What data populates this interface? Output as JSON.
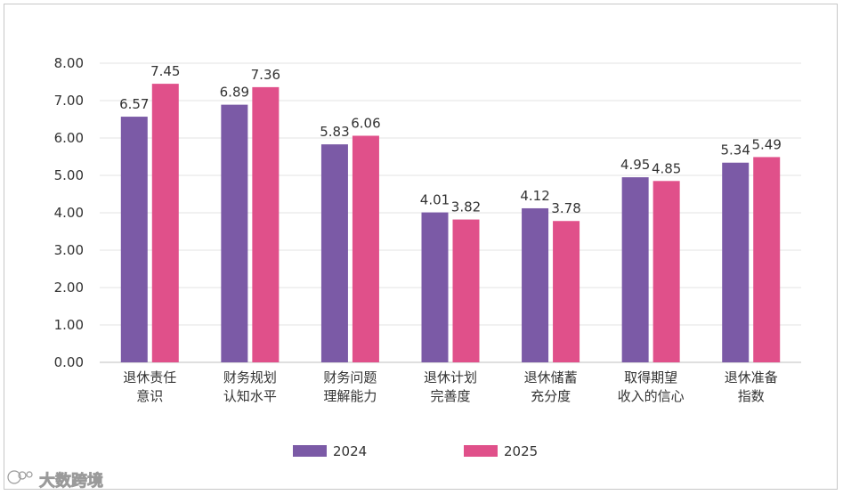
{
  "chart_data": {
    "type": "bar",
    "title": "",
    "xlabel": "",
    "ylabel": "",
    "ylim": [
      0,
      8
    ],
    "yticks": [
      "0.00",
      "1.00",
      "2.00",
      "3.00",
      "4.00",
      "5.00",
      "6.00",
      "7.00",
      "8.00"
    ],
    "grid": true,
    "legend_position": "bottom",
    "categories": [
      [
        "退休责任",
        "意识"
      ],
      [
        "财务规划",
        "认知水平"
      ],
      [
        "财务问题",
        "理解能力"
      ],
      [
        "退休计划",
        "完善度"
      ],
      [
        "退休储蓄",
        "充分度"
      ],
      [
        "取得期望",
        "收入的信心"
      ],
      [
        "退休准备",
        "指数"
      ]
    ],
    "series": [
      {
        "name": "2024",
        "color": "#7b5aa6",
        "values": [
          6.57,
          6.89,
          5.83,
          4.01,
          4.12,
          4.95,
          5.34
        ],
        "labels": [
          "6.57",
          "6.89",
          "5.83",
          "4.01",
          "4.12",
          "4.95",
          "5.34"
        ]
      },
      {
        "name": "2025",
        "color": "#e0508a",
        "values": [
          7.45,
          7.36,
          6.06,
          3.82,
          3.78,
          4.85,
          5.49
        ],
        "labels": [
          "7.45",
          "7.36",
          "6.06",
          "3.82",
          "3.78",
          "4.85",
          "5.49"
        ]
      }
    ]
  },
  "watermark": {
    "text": "大数跨境",
    "icon": "dashuju-logo-icon"
  }
}
